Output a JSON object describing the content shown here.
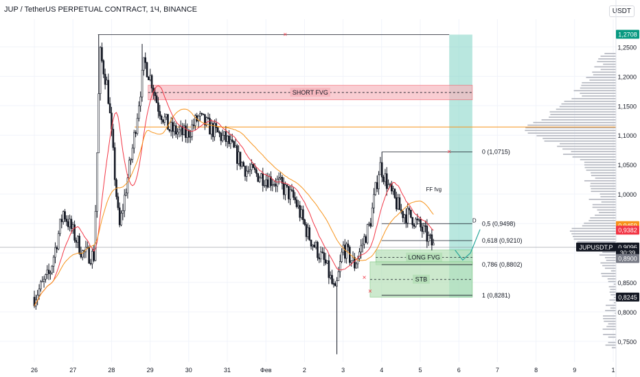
{
  "header": {
    "symbol_title": "JUP / TetherUS PERPETUAL CONTRACT, 1Ч, BINANCE",
    "currency": "USDT"
  },
  "colors": {
    "bull": "#089981",
    "bear": "#f23645",
    "candle_ink": "#131722",
    "ema_fast": "#f23645",
    "ema_slow": "#f7931a",
    "target_zone": "#80d4c4",
    "short_fvg": "#f7b8bf",
    "long_fvg": "#b7e0b9",
    "volume_profile": "#b2b5be",
    "projection": "#26a69a"
  },
  "chart_data": {
    "type": "candlestick",
    "title": "JUP / TetherUS PERPETUAL CONTRACT, 1Ч, BINANCE",
    "timeframe": "1Ч",
    "x_tick_labels": [
      "26",
      "27",
      "28",
      "29",
      "30",
      "31",
      "Фев",
      "2",
      "3",
      "4",
      "5",
      "6",
      "7",
      "8",
      "9",
      "1"
    ],
    "y_tick_labels": [
      "1,2500",
      "1,2000",
      "1,1500",
      "1,1000",
      "1,0500",
      "1,0000",
      "0,9500",
      "0,9000",
      "0,8500",
      "0,8000",
      "0,7500"
    ],
    "ylim": [
      0.715,
      1.297
    ],
    "price_path_anchors": [
      {
        "x": 0.0,
        "close": 0.825
      },
      {
        "x": 0.4,
        "close": 0.865
      },
      {
        "x": 0.75,
        "close": 0.97
      },
      {
        "x": 1.25,
        "close": 0.9
      },
      {
        "x": 1.55,
        "close": 0.895
      },
      {
        "x": 1.7,
        "close": 1.24
      },
      {
        "x": 1.9,
        "close": 1.18
      },
      {
        "x": 2.2,
        "close": 0.94
      },
      {
        "x": 2.55,
        "close": 1.08
      },
      {
        "x": 2.85,
        "close": 1.225
      },
      {
        "x": 3.05,
        "close": 1.19
      },
      {
        "x": 3.2,
        "close": 1.15
      },
      {
        "x": 3.5,
        "close": 1.11
      },
      {
        "x": 3.95,
        "close": 1.1
      },
      {
        "x": 4.25,
        "close": 1.13
      },
      {
        "x": 4.6,
        "close": 1.11
      },
      {
        "x": 5.0,
        "close": 1.09
      },
      {
        "x": 5.5,
        "close": 1.04
      },
      {
        "x": 6.3,
        "close": 1.02
      },
      {
        "x": 6.75,
        "close": 0.99
      },
      {
        "x": 7.1,
        "close": 0.93
      },
      {
        "x": 7.55,
        "close": 0.88
      },
      {
        "x": 7.8,
        "close": 0.83
      },
      {
        "x": 8.0,
        "close": 0.91
      },
      {
        "x": 8.3,
        "close": 0.88
      },
      {
        "x": 8.7,
        "close": 0.95
      },
      {
        "x": 8.95,
        "close": 1.05
      },
      {
        "x": 9.25,
        "close": 1.0
      },
      {
        "x": 9.5,
        "close": 0.97
      },
      {
        "x": 9.8,
        "close": 0.96
      },
      {
        "x": 10.1,
        "close": 0.935
      },
      {
        "x": 10.35,
        "close": 0.91
      }
    ],
    "ema_fast_lag": 12,
    "ema_slow_lag": 30,
    "current_price": 0.9096,
    "price_labels": [
      {
        "text": "1,2708",
        "price": 1.2708,
        "color": "#089981"
      },
      {
        "text": "0,9459",
        "price": 0.9459,
        "color": "#f7931a"
      },
      {
        "text": "0,9382",
        "price": 0.9382,
        "color": "#f23645"
      },
      {
        "text": "JUPUSDT.P",
        "price": 0.9096,
        "color": "#131722"
      },
      {
        "text": "0,9096",
        "price": 0.9096,
        "color": "#131722"
      },
      {
        "text": "30:39",
        "price": 0.9,
        "color": "#131722"
      },
      {
        "text": "0,8900",
        "price": 0.89,
        "color": "#787b86"
      },
      {
        "text": "0,8245",
        "price": 0.8245,
        "color": "#131722"
      }
    ],
    "zones": [
      {
        "label": "SHORT FVG",
        "top": 1.185,
        "bottom": 1.16,
        "x_start": 2.95,
        "x_end": 11.35
      },
      {
        "label": "LONG FVG",
        "top": 0.905,
        "bottom": 0.88,
        "x_start": 8.85,
        "x_end": 11.35
      },
      {
        "label": "STB",
        "top": 0.885,
        "bottom": 0.825,
        "x_start": 8.7,
        "x_end": 11.35
      }
    ],
    "target_zone": {
      "x_start": 10.75,
      "x_end": 11.35,
      "top": 1.2708,
      "bottom": 0.8245
    },
    "horizontal_line": {
      "price": 1.114,
      "color": "#f7931a"
    },
    "fib_levels": [
      {
        "label": "0 (1,0715)",
        "price": 1.0715
      },
      {
        "label": "0,5 (0,9498)",
        "price": 0.9498
      },
      {
        "label": "0,618 (0,9210)",
        "price": 0.921
      },
      {
        "label": "0,786 (0,8802)",
        "price": 0.8802
      },
      {
        "label": "1 (0,8281)",
        "price": 0.8281
      }
    ],
    "annotations": [
      {
        "text": "FF fvg",
        "x": 10.15,
        "price": 1.005
      },
      {
        "text": "D",
        "x": 11.35,
        "price": 0.952
      }
    ],
    "x_markers": [
      {
        "x": 6.5,
        "price": 1.2708,
        "color": "#f23645"
      },
      {
        "x": 10.75,
        "price": 1.0715,
        "color": "#f23645"
      },
      {
        "x": 8.7,
        "price": 0.835,
        "color": "#f23645"
      },
      {
        "x": 8.55,
        "price": 0.858,
        "color": "#f23645"
      }
    ],
    "projection_path": [
      {
        "x": 10.9,
        "price": 0.905
      },
      {
        "x": 11.1,
        "price": 0.888
      },
      {
        "x": 11.3,
        "price": 0.9
      },
      {
        "x": 11.55,
        "price": 0.94
      }
    ],
    "volume_profile": {
      "poc_price": 1.114,
      "levels_note": "horizontal volume-at-price histogram on the right side"
    }
  }
}
